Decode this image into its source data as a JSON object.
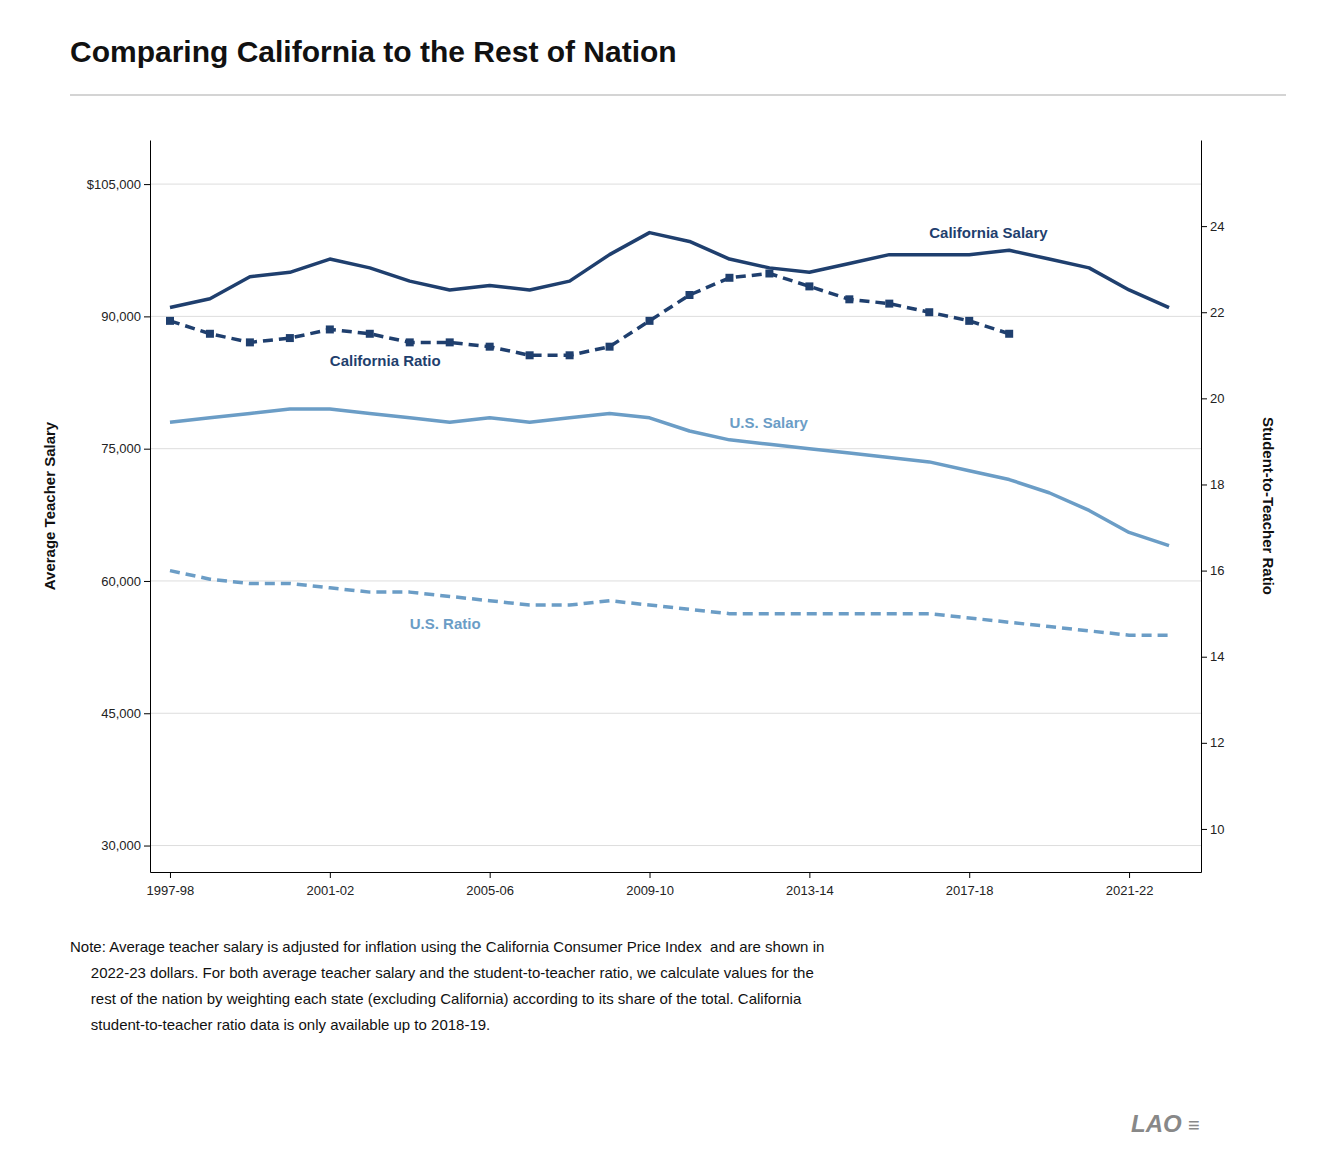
{
  "chart_data": {
    "type": "line",
    "title": "Comparing California to the Rest of Nation",
    "ylabel": "Average Teacher Salary",
    "y2label": "Student-to-Teacher Ratio",
    "x": [
      1997,
      1998,
      1999,
      2000,
      2001,
      2002,
      2003,
      2004,
      2005,
      2006,
      2007,
      2008,
      2009,
      2010,
      2011,
      2012,
      2013,
      2014,
      2015,
      2016,
      2017,
      2018,
      2019,
      2020,
      2021,
      2022
    ],
    "xlim": [
      1996.5,
      2022.8
    ],
    "xticks": [
      {
        "value": 1997,
        "label": "1997-98"
      },
      {
        "value": 2001,
        "label": "2001-02"
      },
      {
        "value": 2005,
        "label": "2005-06"
      },
      {
        "value": 2009,
        "label": "2009-10"
      },
      {
        "value": 2013,
        "label": "2013-14"
      },
      {
        "value": 2017,
        "label": "2017-18"
      },
      {
        "value": 2021,
        "label": "2021-22"
      }
    ],
    "ylim": [
      27000,
      110000
    ],
    "yticks": [
      {
        "value": 30000,
        "label": "30,000"
      },
      {
        "value": 45000,
        "label": "45,000"
      },
      {
        "value": 60000,
        "label": "60,000"
      },
      {
        "value": 75000,
        "label": "75,000"
      },
      {
        "value": 90000,
        "label": "90,000"
      },
      {
        "value": 105000,
        "label": "$105,000"
      }
    ],
    "y2lim": [
      9.0,
      26.0
    ],
    "y2ticks": [
      10,
      12,
      14,
      16,
      18,
      20,
      22,
      24
    ],
    "grid": true,
    "series": [
      {
        "name": "California Salary",
        "color": "#1f3f6e",
        "axis": "y",
        "line_style": "solid",
        "values": [
          91000,
          92000,
          94500,
          95000,
          96500,
          95500,
          94000,
          93000,
          93500,
          93000,
          94000,
          97000,
          99500,
          98500,
          96500,
          95500,
          95000,
          96000,
          97000,
          97000,
          97000,
          97500,
          96500,
          95500,
          93000,
          91000
        ]
      },
      {
        "name": "U.S. Salary",
        "color": "#6b9dc6",
        "axis": "y",
        "line_style": "solid",
        "values": [
          78000,
          78500,
          79000,
          79500,
          79500,
          79000,
          78500,
          78000,
          78500,
          78000,
          78500,
          79000,
          78500,
          77000,
          76000,
          75500,
          75000,
          74500,
          74000,
          73500,
          72500,
          71500,
          70000,
          68000,
          65500,
          64000
        ]
      },
      {
        "name": "California Ratio",
        "color": "#1f3f6e",
        "axis": "y2",
        "line_style": "dashed",
        "marker": "square",
        "values": [
          21.8,
          21.5,
          21.3,
          21.4,
          21.6,
          21.5,
          21.3,
          21.3,
          21.2,
          21.0,
          21.0,
          21.2,
          21.8,
          22.4,
          22.8,
          22.9,
          22.6,
          22.3,
          22.2,
          22.0,
          21.8,
          21.5,
          null,
          null,
          null,
          null
        ]
      },
      {
        "name": "U.S. Ratio",
        "color": "#6b9dc6",
        "axis": "y2",
        "line_style": "dashed",
        "values": [
          16.0,
          15.8,
          15.7,
          15.7,
          15.6,
          15.5,
          15.5,
          15.4,
          15.3,
          15.2,
          15.2,
          15.3,
          15.2,
          15.1,
          15.0,
          15.0,
          15.0,
          15.0,
          15.0,
          15.0,
          14.9,
          14.8,
          14.7,
          14.6,
          14.5,
          14.5
        ]
      }
    ],
    "annotations": [
      "Note: Average teacher salary is adjusted for inflation using the California Consumer Price Index  and are shown in\n     2022-23 dollars. For both average teacher salary and the student-to-teacher ratio, we calculate values for the\n     rest of the nation by weighting each state (excluding California) according to its share of the total. California\n     student-to-teacher ratio data is only available up to 2018-19.",
      "LAO",
      "≡"
    ]
  }
}
